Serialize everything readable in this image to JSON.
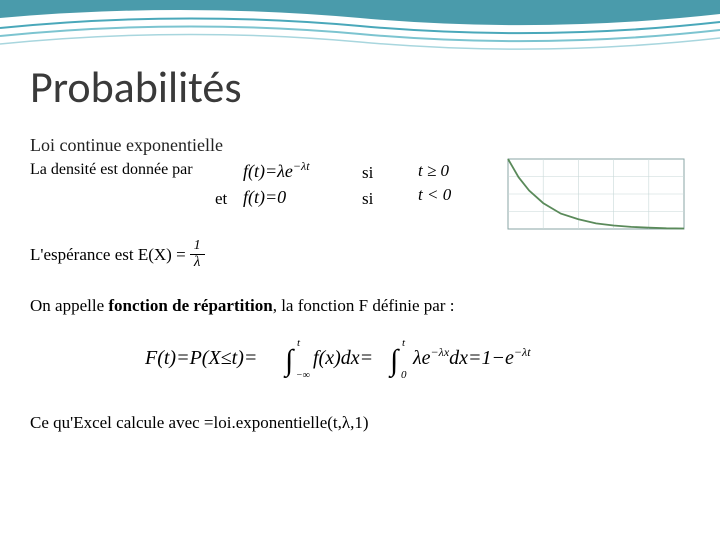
{
  "title": "Probabilités",
  "subtitle": "Loi continue exponentielle",
  "density_text": "La densité est donnée par",
  "et": "et",
  "si": "si",
  "formula_f1": "f(t)=λe",
  "formula_f1_exp": "−λt",
  "formula_f2": "f(t)=0",
  "cond1": "t ≥ 0",
  "cond2": "t < 0",
  "esperance_label": "L'espérance est E(X) =",
  "frac_num": "1",
  "frac_den": "λ",
  "repartition_text_pre": "On appelle ",
  "repartition_bold": "fonction de répartition",
  "repartition_text_post": ", la fonction F définie par :",
  "excel_text": "Ce qu'Excel calcule avec =loi.exponentielle(t,λ,1)",
  "wave": {
    "colors": [
      "#2a8a9c",
      "#4aa8ba",
      "#7cc4d0"
    ],
    "background": "#ffffff"
  },
  "chart": {
    "type": "line",
    "background": "#ffffff",
    "border_color": "#8aa6a6",
    "grid_color": "#c8d8d8",
    "line_color": "#5a8a5a",
    "line_width": 1.8,
    "xlim": [
      0,
      5
    ],
    "ylim": [
      0,
      1
    ],
    "points": [
      [
        0,
        1.0
      ],
      [
        0.3,
        0.74
      ],
      [
        0.6,
        0.55
      ],
      [
        1.0,
        0.37
      ],
      [
        1.5,
        0.22
      ],
      [
        2.0,
        0.14
      ],
      [
        2.5,
        0.08
      ],
      [
        3.0,
        0.05
      ],
      [
        3.5,
        0.03
      ],
      [
        4.0,
        0.02
      ],
      [
        4.5,
        0.01
      ],
      [
        5.0,
        0.007
      ]
    ],
    "x_ticks": 5,
    "y_ticks": 4
  },
  "big_formula": {
    "prefix": "F(t)=P(X≤t)=",
    "int1_low": "−∞",
    "int1_high": "t",
    "int1_body": "f(x)dx=",
    "int2_low": "0",
    "int2_high": "t",
    "int2_body_a": "λe",
    "int2_body_exp": "−λx",
    "int2_body_b": "dx=1−e",
    "final_exp": "−λt"
  }
}
